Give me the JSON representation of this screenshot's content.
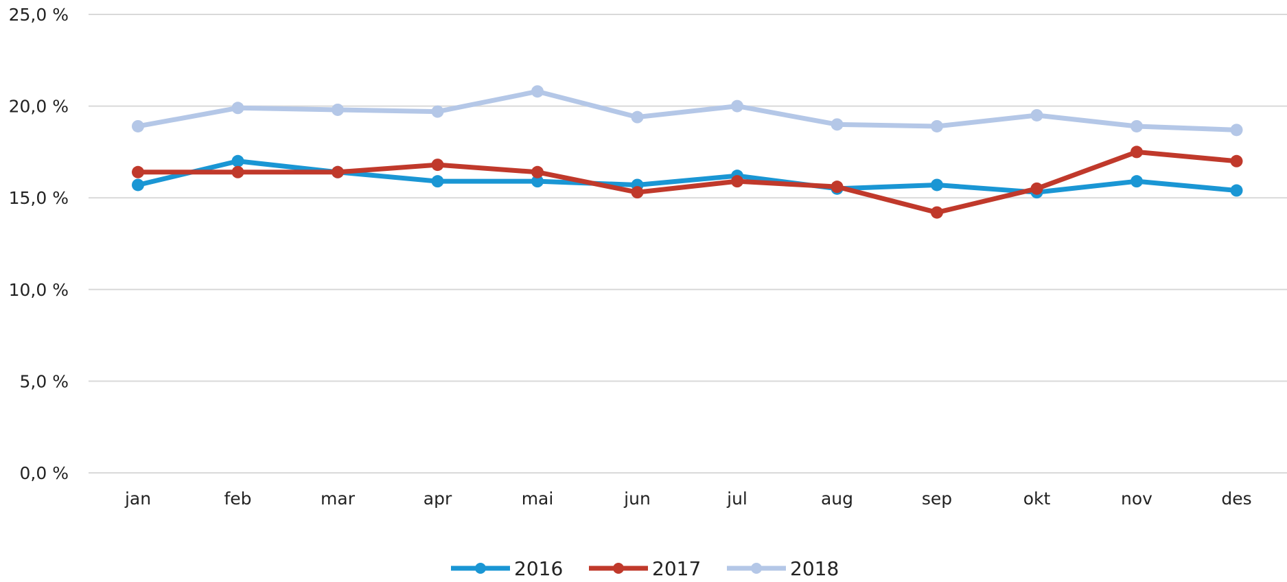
{
  "chart_data": {
    "type": "line",
    "title": "",
    "xlabel": "",
    "ylabel": "",
    "categories": [
      "jan",
      "feb",
      "mar",
      "apr",
      "mai",
      "jun",
      "jul",
      "aug",
      "sep",
      "okt",
      "nov",
      "des"
    ],
    "ylim": [
      0,
      25
    ],
    "yticks": [
      0,
      5,
      10,
      15,
      20,
      25
    ],
    "ytick_labels": [
      "0,0 %",
      "5,0 %",
      "10,0 %",
      "15,0 %",
      "20,0 %",
      "25,0 %"
    ],
    "grid": true,
    "legend_position": "bottom",
    "series": [
      {
        "name": "2016",
        "color": "#1a96d4",
        "values": [
          15.7,
          17.0,
          16.4,
          15.9,
          15.9,
          15.7,
          16.2,
          15.5,
          15.7,
          15.3,
          15.9,
          15.4
        ]
      },
      {
        "name": "2017",
        "color": "#c0392b",
        "values": [
          16.4,
          16.4,
          16.4,
          16.8,
          16.4,
          15.3,
          15.9,
          15.6,
          14.2,
          15.5,
          17.5,
          17.0
        ]
      },
      {
        "name": "2018",
        "color": "#b4c7e7",
        "values": [
          18.9,
          19.9,
          19.8,
          19.7,
          20.8,
          19.4,
          20.0,
          19.0,
          18.9,
          19.5,
          18.9,
          18.7
        ]
      }
    ]
  }
}
